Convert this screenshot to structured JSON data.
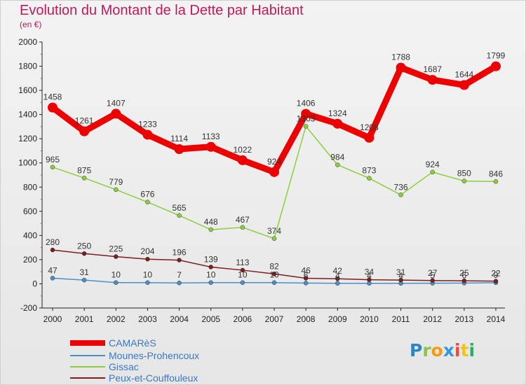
{
  "title": "Evolution du Montant de la Dette par Habitant",
  "subtitle": "(en €)",
  "brand": {
    "letters": [
      "P",
      "r",
      "o",
      "x",
      "i",
      "t",
      "i"
    ],
    "colors": [
      "#2e86c1",
      "#8bc34a",
      "#f39c12",
      "#3498db",
      "#e74c3c",
      "#f1c40f",
      "#27ae60"
    ]
  },
  "chart_data": {
    "type": "line",
    "x": [
      2000,
      2001,
      2002,
      2003,
      2004,
      2005,
      2006,
      2007,
      2008,
      2009,
      2010,
      2011,
      2012,
      2013,
      2014
    ],
    "ylim": [
      -200,
      2000
    ],
    "yticks": [
      -200,
      0,
      200,
      400,
      600,
      800,
      1000,
      1200,
      1400,
      1600,
      1800,
      2000
    ],
    "grid": false,
    "legend_position": "bottom-left",
    "series": [
      {
        "name": "CAMARèS",
        "color": "#ee0000",
        "values": [
          1458,
          1261,
          1407,
          1233,
          1114,
          1133,
          1022,
          924,
          1406,
          1324,
          1208,
          1788,
          1687,
          1644,
          1799
        ]
      },
      {
        "name": "Mounes-Prohencoux",
        "color": "#4a90c8",
        "values": [
          47,
          31,
          10,
          10,
          7,
          10,
          10,
          10,
          6,
          4,
          4,
          4,
          5,
          6,
          9
        ]
      },
      {
        "name": "Gissac",
        "color": "#8ccf3c",
        "values": [
          965,
          875,
          779,
          676,
          565,
          448,
          467,
          374,
          1303,
          984,
          873,
          736,
          924,
          850,
          846
        ]
      },
      {
        "name": "Peux-et-Couffouleux",
        "color": "#7a1e1e",
        "values": [
          280,
          250,
          225,
          204,
          196,
          139,
          113,
          82,
          46,
          42,
          34,
          31,
          27,
          25,
          22
        ]
      }
    ],
    "data_labels": [
      [
        "1458",
        "1261",
        "1407",
        "1233",
        "1114",
        "1133",
        "1022",
        "924",
        "1406",
        "1324",
        "1208",
        "1788",
        "1687",
        "1644",
        "1799"
      ],
      [
        "47",
        "31",
        "10",
        "10",
        "7",
        "10",
        "10",
        "10",
        "6",
        "4",
        "4",
        "4",
        "5",
        "6",
        "9"
      ],
      [
        "965",
        "875",
        "779",
        "676",
        "565",
        "448",
        "467",
        "374",
        "1303",
        "984",
        "873",
        "736",
        "924",
        "850",
        "846"
      ],
      [
        "280",
        "250",
        "225",
        "204",
        "196",
        "139",
        "113",
        "82",
        "46",
        "42",
        "34",
        "31",
        "27",
        "25",
        "22"
      ]
    ]
  }
}
